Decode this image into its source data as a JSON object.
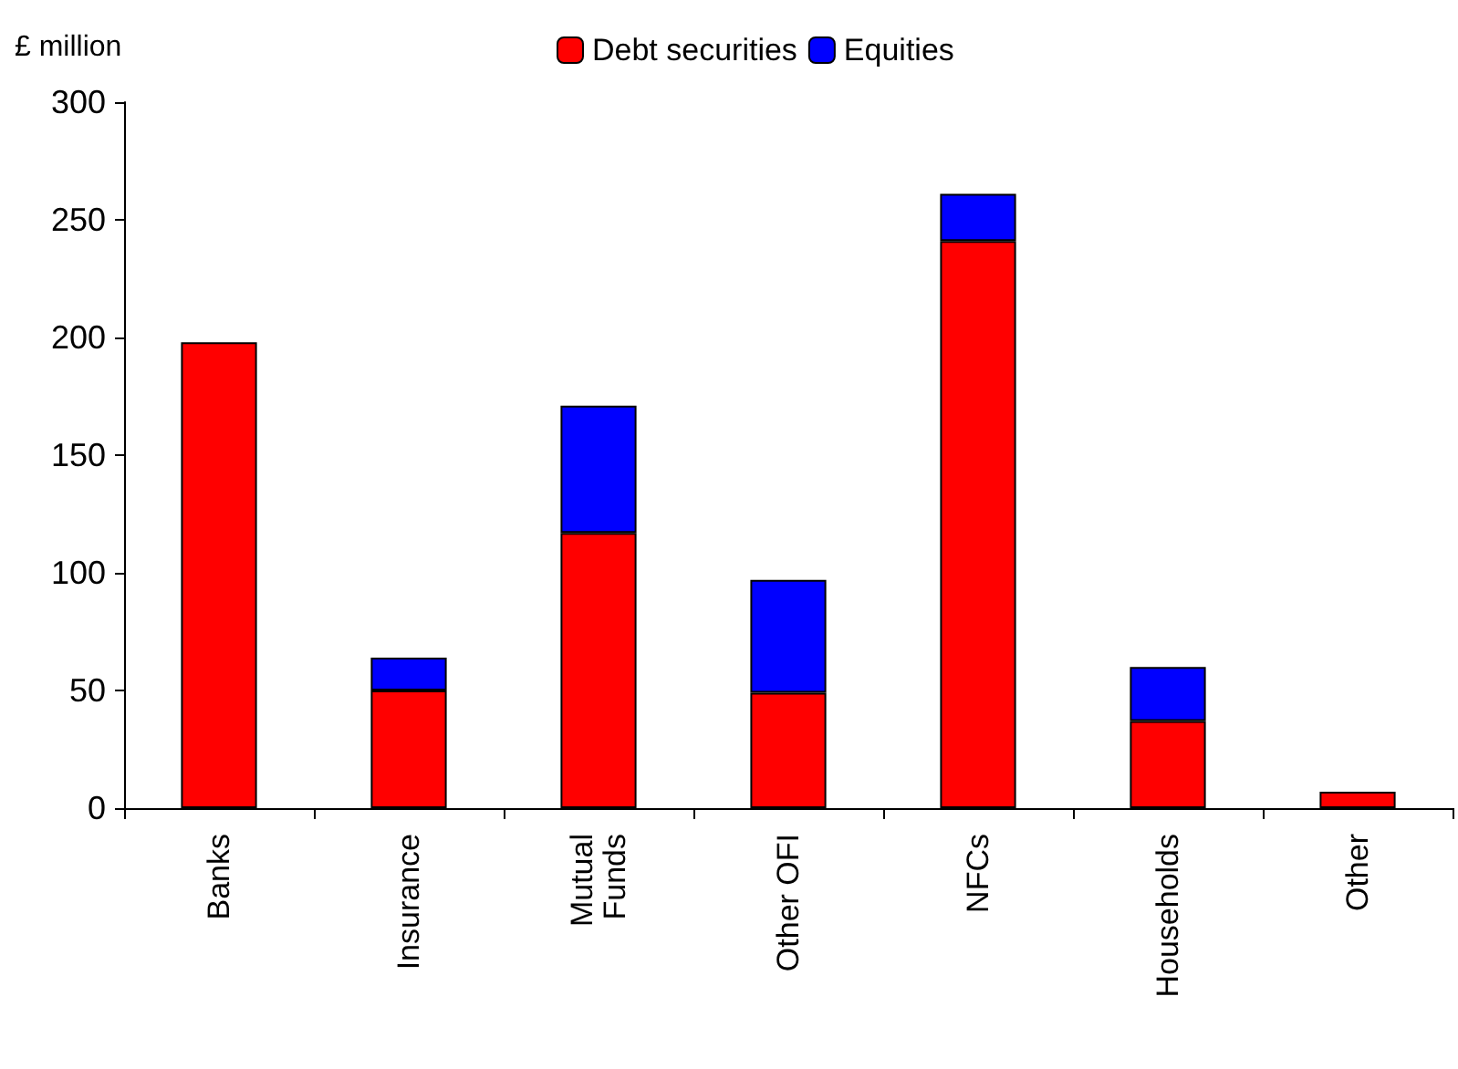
{
  "chart_data": {
    "type": "bar",
    "ylabel": "£ million",
    "categories": [
      "Banks",
      "Insurance",
      "Mutual\nFunds",
      "Other OFI",
      "NFCs",
      "Households",
      "Other"
    ],
    "stacked": true,
    "series": [
      {
        "name": "Debt securities",
        "color": "#ff0000",
        "values": [
          198,
          50,
          117,
          49,
          241,
          37,
          7
        ]
      },
      {
        "name": "Equities",
        "color": "#0000ff",
        "values": [
          null,
          14,
          54,
          48,
          20,
          23,
          null
        ]
      }
    ],
    "ylim": [
      0,
      300
    ],
    "yticks": [
      0,
      50,
      100,
      150,
      200,
      250,
      300
    ],
    "grid": false,
    "legend": "top"
  }
}
